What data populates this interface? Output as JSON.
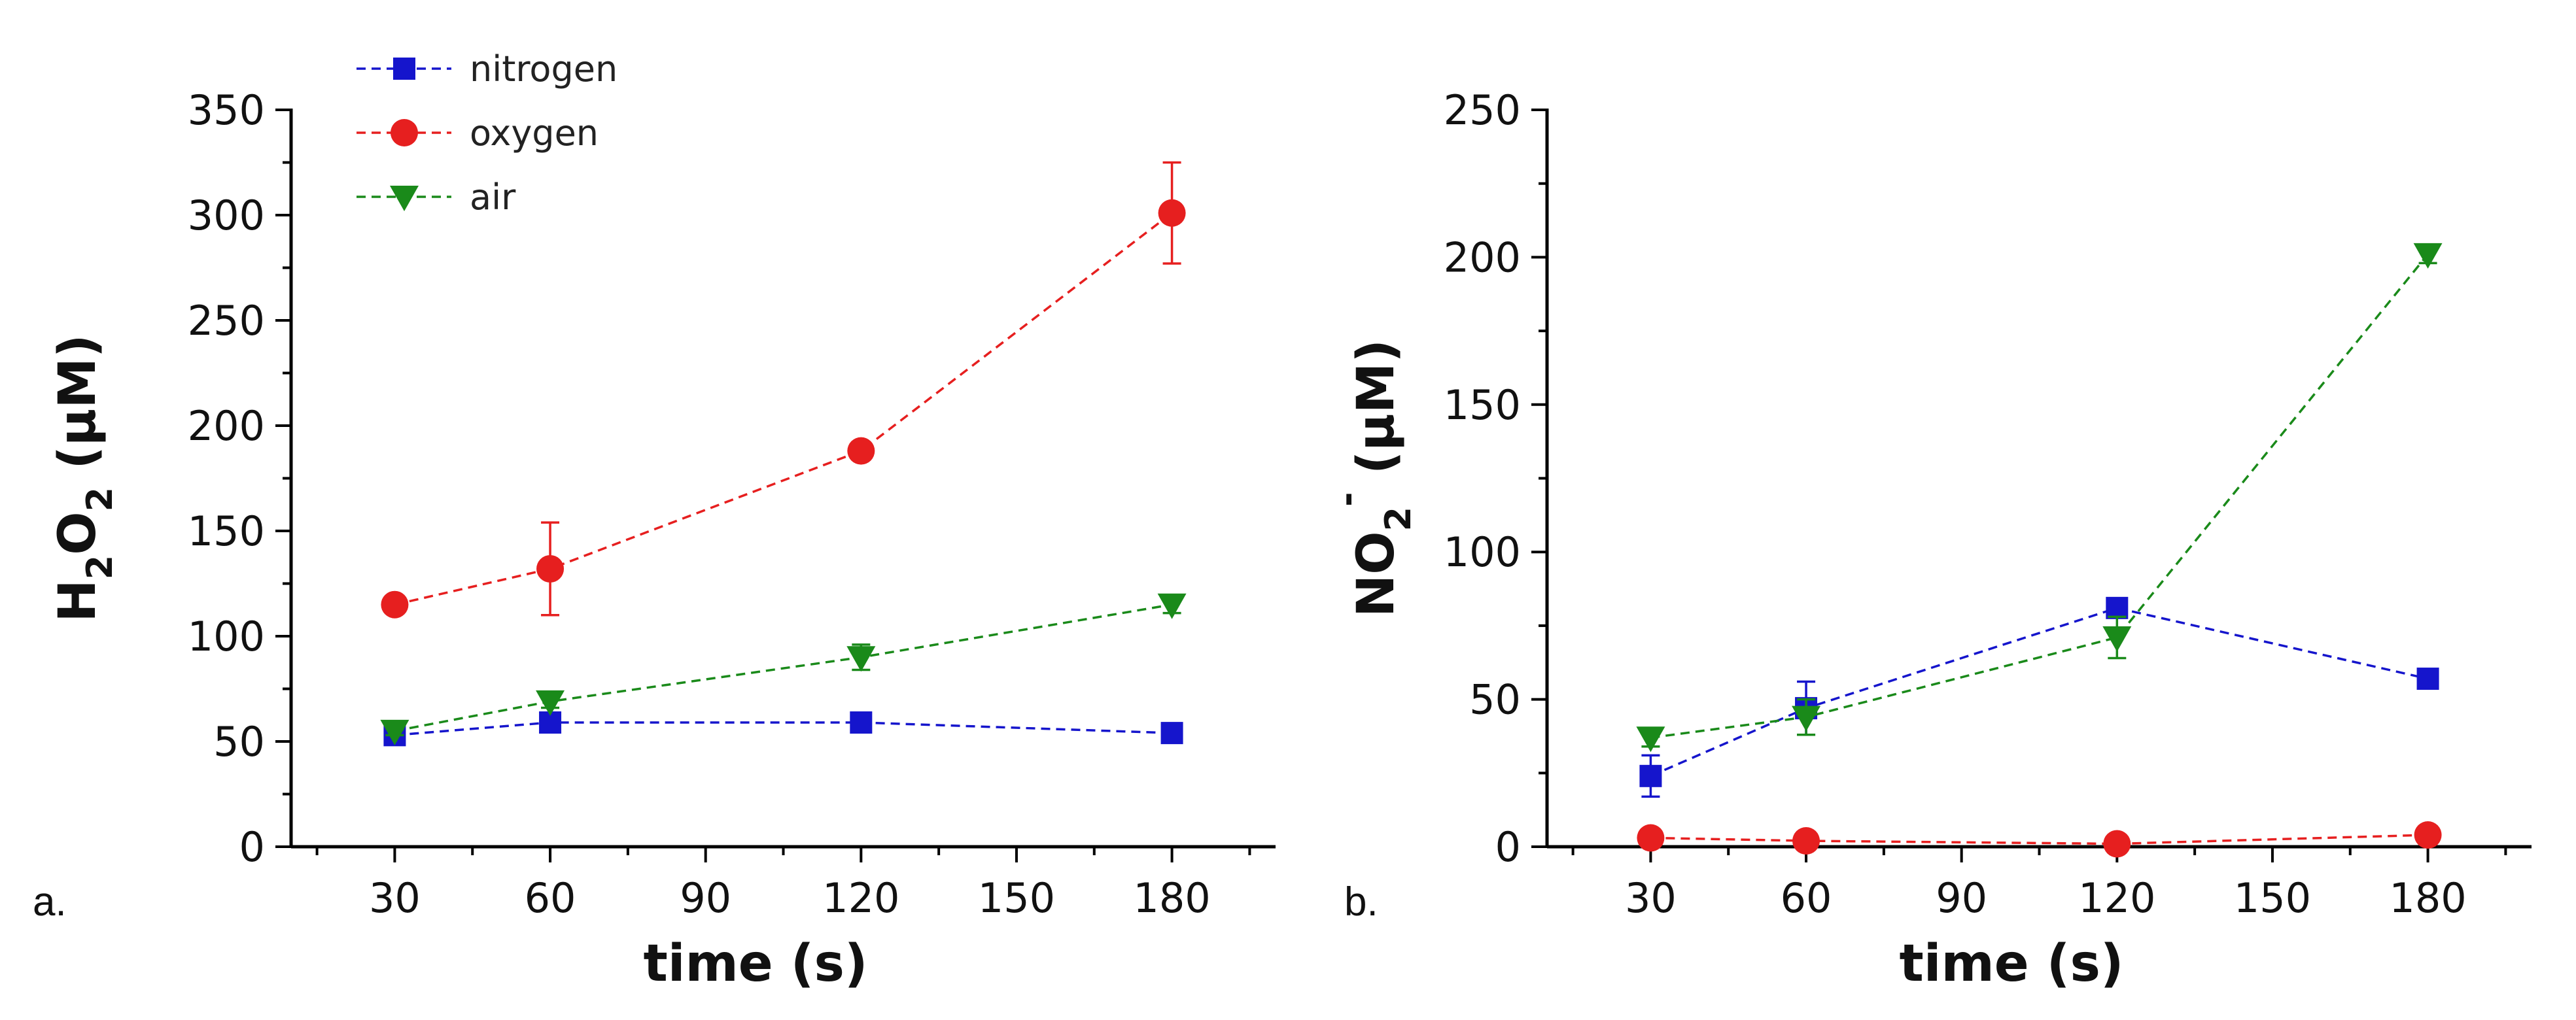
{
  "chart_data": [
    {
      "type": "line",
      "panel_label": "a.",
      "xlabel": "time (s)",
      "ylabel": {
        "main": "H",
        "sub1": "2",
        "mid": "O",
        "sub2": "2",
        "unit": " (μM)"
      },
      "xlim": [
        10,
        200
      ],
      "ylim": [
        0,
        350
      ],
      "xticks": [
        30,
        60,
        90,
        120,
        150,
        180
      ],
      "yticks": [
        0,
        50,
        100,
        150,
        200,
        250,
        300,
        350
      ],
      "x": [
        30,
        60,
        120,
        180
      ],
      "legend": {
        "placement": "top-left"
      },
      "series": [
        {
          "name": "nitrogen",
          "color": "#1515cc",
          "marker": "square",
          "values": [
            53,
            59,
            59,
            54
          ],
          "errors": [
            3,
            3,
            3,
            3
          ]
        },
        {
          "name": "oxygen",
          "color": "#e61f1f",
          "marker": "circle",
          "values": [
            115,
            132,
            188,
            301
          ],
          "errors": [
            2,
            22,
            2,
            24
          ]
        },
        {
          "name": "air",
          "color": "#1a8a1a",
          "marker": "triangle-down",
          "values": [
            55,
            69,
            90,
            115
          ],
          "errors": [
            2,
            3,
            6,
            4
          ]
        }
      ]
    },
    {
      "type": "line",
      "panel_label": "b.",
      "xlabel": "time (s)",
      "ylabel": {
        "main": "NO",
        "sub1": "2",
        "sup": "-",
        "unit": " (μM)"
      },
      "xlim": [
        10,
        200
      ],
      "ylim": [
        0,
        250
      ],
      "xticks": [
        30,
        60,
        90,
        120,
        150,
        180
      ],
      "yticks": [
        0,
        50,
        100,
        150,
        200,
        250
      ],
      "x": [
        30,
        60,
        120,
        180
      ],
      "series": [
        {
          "name": "nitrogen",
          "color": "#1515cc",
          "marker": "square",
          "values": [
            24,
            47,
            81,
            57
          ],
          "errors": [
            7,
            9,
            2,
            3
          ]
        },
        {
          "name": "oxygen",
          "color": "#e61f1f",
          "marker": "circle",
          "values": [
            3,
            2,
            1,
            4
          ],
          "errors": [
            0,
            0,
            0,
            0
          ]
        },
        {
          "name": "air",
          "color": "#1a8a1a",
          "marker": "triangle-down",
          "values": [
            37,
            44,
            71,
            201
          ],
          "errors": [
            3,
            6,
            7,
            3
          ]
        }
      ]
    }
  ]
}
